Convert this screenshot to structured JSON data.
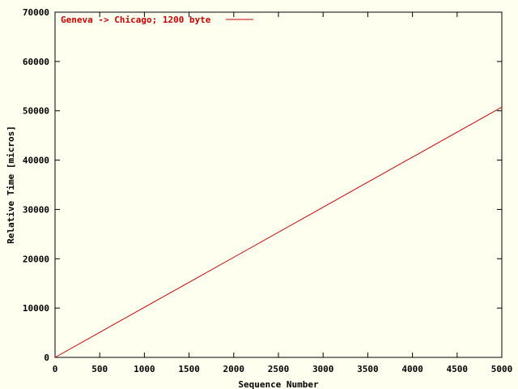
{
  "chart_data": {
    "type": "line",
    "title": "",
    "xlabel": "Sequence Number",
    "ylabel": "Relative Time [micros]",
    "xlim": [
      0,
      5000
    ],
    "ylim": [
      0,
      70000
    ],
    "xticks": [
      0,
      500,
      1000,
      1500,
      2000,
      2500,
      3000,
      3500,
      4000,
      4500,
      5000
    ],
    "yticks": [
      0,
      10000,
      20000,
      30000,
      40000,
      50000,
      60000,
      70000
    ],
    "grid": false,
    "legend_position": "top-left",
    "series": [
      {
        "name": "Geneva -> Chicago; 1200 byte",
        "color": "#cc0000",
        "x": [
          0,
          1000,
          2000,
          3000,
          4000,
          5000
        ],
        "y": [
          0,
          10150,
          20300,
          30450,
          40600,
          50750
        ]
      }
    ]
  },
  "colors": {
    "background": "#fffff0",
    "axis": "#000000",
    "series": "#cc0000"
  }
}
